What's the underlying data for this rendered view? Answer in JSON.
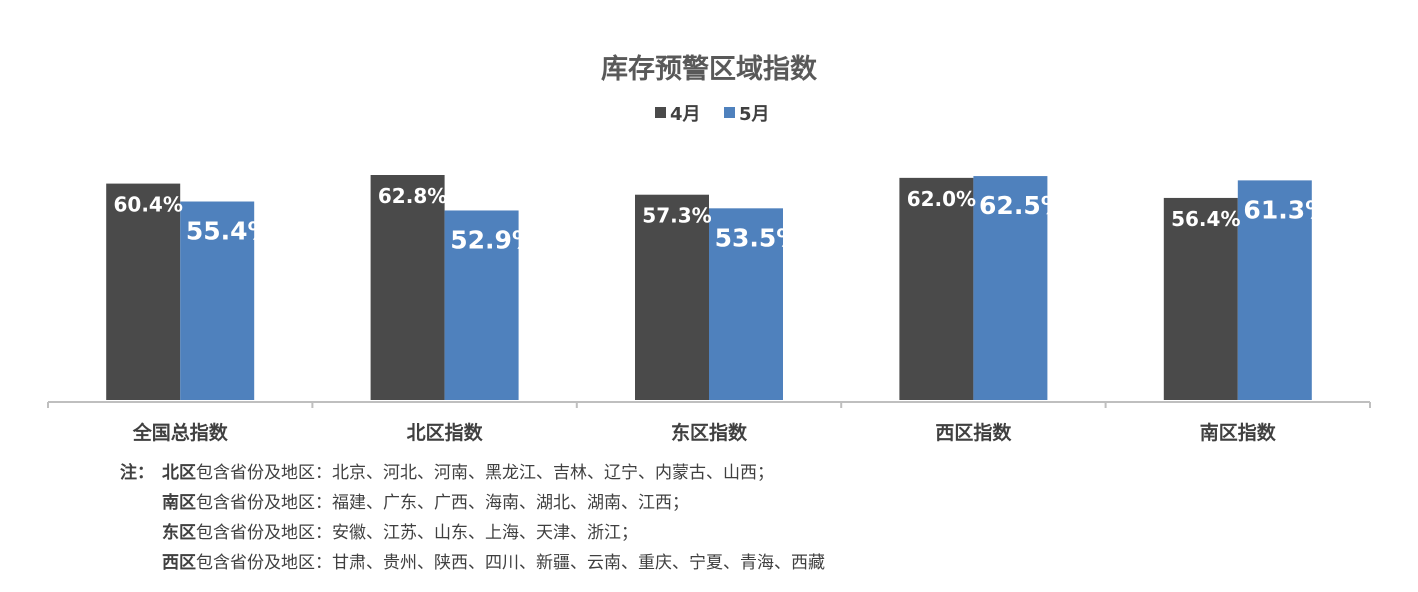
{
  "chart_data": {
    "type": "bar",
    "title": "库存预警区域指数",
    "categories": [
      "全国总指数",
      "北区指数",
      "东区指数",
      "西区指数",
      "南区指数"
    ],
    "series": [
      {
        "name": "4月",
        "values": [
          60.4,
          62.8,
          57.3,
          62.0,
          56.4
        ],
        "labels": [
          "60.4%",
          "62.8%",
          "57.3%",
          "62.0%",
          "56.4%"
        ],
        "color": "#4a4a4a"
      },
      {
        "name": "5月",
        "values": [
          55.4,
          52.9,
          53.5,
          62.5,
          61.3
        ],
        "labels": [
          "55.4%",
          "52.9%",
          "53.5%",
          "62.5%",
          "61.3%"
        ],
        "color": "#4f81bd"
      }
    ],
    "unit": "%",
    "legend_position": "top-center",
    "grid": false
  },
  "notes": {
    "prefix": "注：",
    "items": [
      {
        "region": "北区",
        "text": "包含省份及地区：北京、河北、河南、黑龙江、吉林、辽宁、内蒙古、山西；"
      },
      {
        "region": "南区",
        "text": "包含省份及地区：福建、广东、广西、海南、湖北、湖南、江西；"
      },
      {
        "region": "东区",
        "text": "包含省份及地区：安徽、江苏、山东、上海、天津、浙江；"
      },
      {
        "region": "西区",
        "text": "包含省份及地区：甘肃、贵州、陕西、四川、新疆、云南、重庆、宁夏、青海、西藏"
      }
    ]
  }
}
